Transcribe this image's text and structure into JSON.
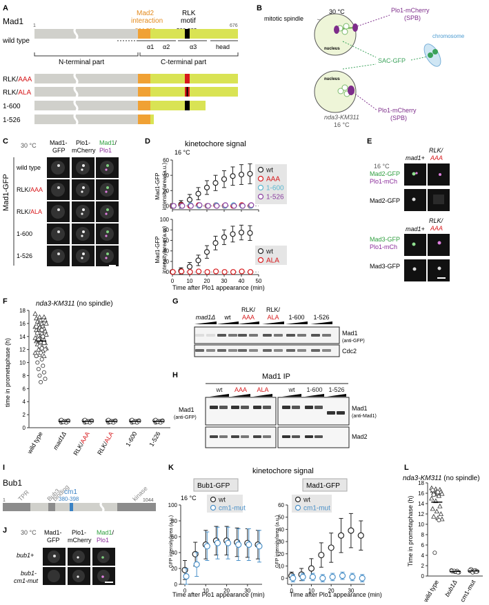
{
  "panels": {
    "A": "A",
    "B": "B",
    "C": "C",
    "D": "D",
    "E": "E",
    "F": "F",
    "G": "G",
    "H": "H",
    "I": "I",
    "J": "J",
    "K": "K",
    "L": "L"
  },
  "panelA": {
    "title": "Mad1",
    "mad2_label_1": "Mad2",
    "mad2_label_2": "interaction",
    "mad2_range": "504-523",
    "rlk_label_1": "RLK",
    "rlk_label_2": "motif",
    "rlk_range": "580-582",
    "start": "1",
    "end": "676",
    "wild_type": "wild type",
    "alpha1": "α1",
    "alpha2": "α2",
    "alpha3": "α3",
    "head": "head",
    "n_term": "N-terminal part",
    "c_term": "C-terminal part",
    "constructs": [
      {
        "prefix": "RLK/",
        "suffix": "AAA"
      },
      {
        "prefix": "RLK/",
        "suffix": "ALA"
      },
      {
        "prefix": "1-600",
        "suffix": ""
      },
      {
        "prefix": "1-526",
        "suffix": ""
      }
    ]
  },
  "panelB": {
    "temp1": "30 °C",
    "mitotic_spindle": "mitotic spindle",
    "nucleus": "nucleus",
    "plo1_1": "Plo1-mCherry",
    "spb": "(SPB)",
    "chromosome": "chromosome",
    "sac": "SAC-GFP",
    "strain": "nda3-KM311",
    "temp2": "16 °C"
  },
  "panelC": {
    "temp": "30 °C",
    "col1": [
      "Mad1-",
      "GFP"
    ],
    "col2": [
      "Plo1-",
      "mCherry"
    ],
    "col3a": "Mad1",
    "col3b": "/",
    "col3c": "Plo1",
    "side": "Mad1-GFP",
    "rows": [
      {
        "a": "wild type",
        "b": ""
      },
      {
        "a": "RLK/",
        "b": "AAA"
      },
      {
        "a": "RLK/",
        "b": "ALA"
      },
      {
        "a": "1-600",
        "b": ""
      },
      {
        "a": "1-526",
        "b": ""
      }
    ]
  },
  "panelD": {
    "title": "kinetochore signal",
    "temp": "16 °C",
    "ylabel_top": [
      "Mad1-GFP",
      "intensity/area (a.u.)"
    ],
    "ylabel_bottom": [
      "Mad1-GFP",
      "intensity/area (a.u.)"
    ],
    "xlabel": "Time after Plo1 appearance (min)",
    "legend_top": [
      {
        "name": "wt",
        "color": "#222222"
      },
      {
        "name": "AAA",
        "color": "#d7191c"
      },
      {
        "name": "1-600",
        "color": "#5bb8d0"
      },
      {
        "name": "1-526",
        "color": "#8a3fa0"
      }
    ],
    "legend_bottom": [
      {
        "name": "wt",
        "color": "#222222"
      },
      {
        "name": "ALA",
        "color": "#d7191c"
      }
    ]
  },
  "panelE": {
    "temp": "16 °C",
    "mad1plus": "mad1+",
    "rlk": "RLK/",
    "aaa": "AAA",
    "mad2gfp": "Mad2-GFP",
    "plo1mch": "Plo1-mCh",
    "mad2gfp_only": "Mad2-GFP",
    "mad3gfp": "Mad3-GFP",
    "mad3gfp_only": "Mad3-GFP"
  },
  "panelF": {
    "title_italic": "nda3-KM311",
    "title_rest": " (no spindle)",
    "ylabel": "time in prometaphase (h)",
    "categories": [
      {
        "a": "wild type",
        "b": ""
      },
      {
        "a": "mad1Δ",
        "b": ""
      },
      {
        "a": "RLK/",
        "b": "AAA"
      },
      {
        "a": "RLK/",
        "b": "ALA"
      },
      {
        "a": "1-600",
        "b": ""
      },
      {
        "a": "1-526",
        "b": ""
      }
    ]
  },
  "panelG": {
    "lanes": [
      "mad1Δ",
      "wt",
      "RLK/",
      "RLK/",
      "1-600",
      "1-526"
    ],
    "lanes2": [
      "",
      "",
      "AAA",
      "ALA",
      "",
      ""
    ],
    "band1": "Mad1",
    "band1b": "(anti-GFP)",
    "band2": "Cdc2"
  },
  "panelH": {
    "title": "Mad1 IP",
    "lanes": [
      {
        "t": "wt",
        "red": false
      },
      {
        "t": "AAA",
        "red": true
      },
      {
        "t": "ALA",
        "red": true
      },
      {
        "t": "wt",
        "red": false
      },
      {
        "t": "1-600",
        "red": false
      },
      {
        "t": "1-526",
        "red": false
      }
    ],
    "left1": "Mad1",
    "left1b": "(anti-GFP)",
    "right1": "Mad1",
    "right1b": "(anti-Mad1)",
    "band2": "Mad2"
  },
  "panelI": {
    "title": "Bub1",
    "tpr": "TPR",
    "bub3_1": "Bub3",
    "bub3_2": "binding",
    "cm1": "cm1",
    "cm1_range": "380-398",
    "kinase": "kinase",
    "start": "1",
    "end": "1044"
  },
  "panelJ": {
    "temp": "30 °C",
    "col1": [
      "Mad1-",
      "GFP"
    ],
    "col2": [
      "Plo1-",
      "mCherry"
    ],
    "col3a": "Mad1",
    "col3b": "/",
    "col3c": "Plo1",
    "row1": "bub1+",
    "row2a": "bub1-",
    "row2b": "cm1-mut"
  },
  "panelK": {
    "title": "kinetochore signal",
    "box1": "Bub1-GFP",
    "box2": "Mad1-GFP",
    "temp": "16 °C",
    "ylabel": "GFP intensity/area (a.u.)",
    "xlabel": "Time after Plo1 appearance (min)",
    "legend": [
      {
        "name": "wt",
        "color": "#222222"
      },
      {
        "name": "cm1-mut",
        "color": "#4a90c8"
      }
    ]
  },
  "panelL": {
    "title_italic": "nda3-KM311",
    "title_rest": " (no spindle)",
    "ylabel": "Time in prometaphase (h)",
    "categories": [
      "wild type",
      "bub1Δ",
      "cm1-mut"
    ]
  },
  "chart_data": [
    {
      "id": "D-top",
      "type": "scatter",
      "xlabel": "Time after Plo1 appearance (min)",
      "ylabel": "Mad1-GFP intensity/area (a.u.)",
      "xlim": [
        0,
        50
      ],
      "ylim": [
        -5,
        60
      ],
      "yticks": [
        0,
        20,
        40,
        60
      ],
      "xticks": [
        0,
        10,
        20,
        30,
        40,
        50
      ],
      "series": [
        {
          "name": "wt",
          "color": "#222222",
          "x": [
            0,
            5,
            10,
            15,
            20,
            25,
            30,
            35,
            40,
            45
          ],
          "y": [
            0,
            2,
            8,
            16,
            24,
            30,
            35,
            39,
            41,
            42
          ],
          "err": [
            3,
            5,
            7,
            8,
            9,
            10,
            11,
            12,
            13,
            13
          ]
        },
        {
          "name": "AAA",
          "color": "#d7191c",
          "x": [
            0,
            5,
            10,
            15,
            20,
            25,
            30,
            35,
            40,
            45
          ],
          "y": [
            0,
            1,
            0,
            1,
            0,
            1,
            0,
            0,
            1,
            0
          ],
          "err": [
            2,
            2,
            2,
            2,
            2,
            2,
            2,
            2,
            2,
            2
          ]
        },
        {
          "name": "1-600",
          "color": "#5bb8d0",
          "x": [
            0,
            5,
            10,
            15,
            20,
            25,
            30,
            35,
            40,
            45
          ],
          "y": [
            0,
            0,
            1,
            0,
            0,
            1,
            0,
            1,
            0,
            0
          ],
          "err": [
            1.5,
            1.5,
            1.5,
            1.5,
            1.5,
            1.5,
            1.5,
            1.5,
            1.5,
            1.5
          ]
        },
        {
          "name": "1-526",
          "color": "#8a3fa0",
          "x": [
            0,
            5,
            10,
            15,
            20,
            25,
            30,
            35,
            40,
            45
          ],
          "y": [
            0,
            0,
            0,
            1,
            0,
            0,
            1,
            0,
            0,
            1
          ],
          "err": [
            1.5,
            1.5,
            1.5,
            1.5,
            1.5,
            1.5,
            1.5,
            1.5,
            1.5,
            1.5
          ]
        }
      ]
    },
    {
      "id": "D-bottom",
      "type": "scatter",
      "xlabel": "Time after Plo1 appearance (min)",
      "ylabel": "Mad1-GFP intensity/area (a.u.)",
      "xlim": [
        0,
        50
      ],
      "ylim": [
        -5,
        100
      ],
      "yticks": [
        0,
        20,
        40,
        60,
        80,
        100
      ],
      "xticks": [
        0,
        10,
        20,
        30,
        40,
        50
      ],
      "series": [
        {
          "name": "wt",
          "color": "#222222",
          "x": [
            0,
            5,
            10,
            15,
            20,
            25,
            30,
            35,
            40,
            45
          ],
          "y": [
            0,
            2,
            10,
            22,
            38,
            55,
            66,
            72,
            75,
            74
          ],
          "err": [
            3,
            6,
            8,
            10,
            12,
            13,
            14,
            15,
            14,
            14
          ]
        },
        {
          "name": "ALA",
          "color": "#d7191c",
          "x": [
            0,
            5,
            10,
            15,
            20,
            25,
            30,
            35,
            40,
            45
          ],
          "y": [
            0,
            1,
            0,
            1,
            0,
            1,
            0,
            0,
            1,
            0
          ],
          "err": [
            3,
            3,
            3,
            3,
            3,
            3,
            3,
            3,
            3,
            3
          ]
        }
      ]
    },
    {
      "id": "F",
      "type": "scatter",
      "ylabel": "time in prometaphase (h)",
      "ylim": [
        0,
        18
      ],
      "yticks": [
        0,
        2,
        4,
        6,
        8,
        10,
        12,
        14,
        16,
        18
      ],
      "categories": [
        "wild type",
        "mad1Δ",
        "RLK/AAA",
        "RLK/ALA",
        "1-600",
        "1-526"
      ],
      "points": [
        {
          "cat": 0,
          "tri": [
            17.5,
            17,
            17,
            16.8,
            16.5,
            16.5,
            16.3,
            16,
            16,
            15.8,
            15.6,
            15.5,
            15.4,
            15.2,
            15,
            15,
            14.8,
            14.6,
            14.5,
            14.3,
            14.2,
            14,
            13.8,
            13.7,
            13.5,
            13.3,
            13.2,
            13,
            12.8,
            12.5,
            12.2,
            12,
            11.8,
            11.5,
            11.2,
            11
          ],
          "circ": [
            15.5,
            15,
            14.5,
            14,
            13.5,
            13,
            12.5,
            12,
            11.5,
            11,
            10.5,
            10,
            9.5,
            9,
            8.5,
            8,
            7.5,
            7,
            11,
            12.2
          ]
        },
        {
          "cat": 1,
          "y": [
            1.1,
            1.0,
            0.9,
            1.0,
            1.1,
            0.8,
            1.0,
            0.9,
            1.0,
            1.1,
            0.9,
            1.0,
            0.8,
            1.0,
            1.2,
            0.9
          ]
        },
        {
          "cat": 2,
          "y": [
            1.1,
            1.0,
            0.9,
            1.0,
            1.1,
            0.8,
            1.0,
            0.9,
            1.0,
            1.1,
            0.9,
            1.0,
            0.8,
            1.0,
            1.2,
            0.9
          ]
        },
        {
          "cat": 3,
          "y": [
            1.1,
            1.0,
            0.9,
            1.0,
            1.1,
            0.8,
            1.0,
            0.9,
            1.0,
            1.1,
            0.9,
            1.0,
            0.8,
            1.0,
            1.2,
            0.9
          ]
        },
        {
          "cat": 4,
          "y": [
            1.1,
            1.0,
            0.9,
            1.0,
            1.1,
            0.8,
            1.0,
            0.9,
            1.0,
            1.1,
            0.9,
            1.0,
            0.8,
            1.0,
            1.2,
            0.9
          ]
        },
        {
          "cat": 5,
          "y": [
            1.1,
            1.0,
            0.9,
            1.0,
            1.1,
            0.8,
            1.0,
            0.9,
            1.0,
            1.1,
            0.9,
            1.0,
            0.8,
            1.0,
            1.2,
            0.9
          ]
        }
      ]
    },
    {
      "id": "K-Bub1",
      "type": "scatter",
      "xlabel": "Time after Plo1 appearance (min)",
      "ylabel": "GFP intensity/area (a.u.)",
      "xlim": [
        -2,
        37
      ],
      "ylim": [
        0,
        100
      ],
      "yticks": [
        0,
        20,
        40,
        60,
        80,
        100
      ],
      "xticks": [
        0,
        10,
        20,
        30
      ],
      "series": [
        {
          "name": "wt",
          "color": "#222222",
          "x": [
            0,
            5,
            10,
            15,
            20,
            25,
            30,
            35
          ],
          "y": [
            18,
            38,
            50,
            55,
            55,
            53,
            52,
            50
          ],
          "err": [
            12,
            15,
            18,
            18,
            18,
            18,
            18,
            18
          ]
        },
        {
          "name": "cm1-mut",
          "color": "#4a90c8",
          "x": [
            0,
            5,
            10,
            15,
            20,
            25,
            30,
            35
          ],
          "y": [
            10,
            25,
            48,
            52,
            52,
            50,
            50,
            48
          ],
          "err": [
            10,
            15,
            18,
            20,
            20,
            20,
            20,
            20
          ]
        }
      ]
    },
    {
      "id": "K-Mad1",
      "type": "scatter",
      "xlabel": "Time after Plo1 appearance (min)",
      "ylabel": "GFP intensity/area (a.u.)",
      "xlim": [
        -2,
        37
      ],
      "ylim": [
        -5,
        60
      ],
      "yticks": [
        0,
        10,
        20,
        30,
        40,
        50,
        60
      ],
      "xticks": [
        0,
        10,
        20,
        30
      ],
      "series": [
        {
          "name": "wt",
          "color": "#222222",
          "x": [
            0,
            5,
            10,
            15,
            20,
            25,
            30,
            35
          ],
          "y": [
            2,
            3,
            8,
            19,
            25,
            35,
            39,
            35
          ],
          "err": [
            3,
            5,
            8,
            10,
            12,
            14,
            14,
            12
          ]
        },
        {
          "name": "cm1-mut",
          "color": "#4a90c8",
          "x": [
            0,
            5,
            10,
            15,
            20,
            25,
            30,
            35
          ],
          "y": [
            0,
            1,
            1,
            0,
            1,
            2,
            1,
            0
          ],
          "err": [
            3,
            3,
            3,
            3,
            3,
            3,
            3,
            3
          ]
        }
      ]
    },
    {
      "id": "L",
      "type": "scatter",
      "ylabel": "Time in prometaphase (h)",
      "ylim": [
        0,
        18
      ],
      "yticks": [
        0,
        2,
        4,
        6,
        8,
        10,
        12,
        14,
        16,
        18
      ],
      "categories": [
        "wild type",
        "bub1Δ",
        "cm1-mut"
      ],
      "points": [
        {
          "cat": 0,
          "tri": [
            17,
            16.8,
            16.7,
            16.5,
            16.4,
            16.3,
            16.1,
            16,
            15.9,
            15.8,
            15.5,
            15,
            14.5,
            13.5,
            13,
            12.5,
            12,
            11.5,
            11.2,
            11
          ],
          "circ": [
            16.6,
            16.2,
            15.7,
            10.8,
            4.5
          ]
        },
        {
          "cat": 1,
          "y": [
            1.1,
            0.9,
            0.8,
            1.0,
            0.7,
            0.9,
            1.0,
            0.8,
            0.7,
            1.0
          ]
        },
        {
          "cat": 2,
          "y": [
            1.0,
            1.2,
            0.8,
            1.1,
            0.9,
            1.3,
            0.7,
            1.0,
            0.8,
            1.1
          ]
        }
      ]
    }
  ]
}
